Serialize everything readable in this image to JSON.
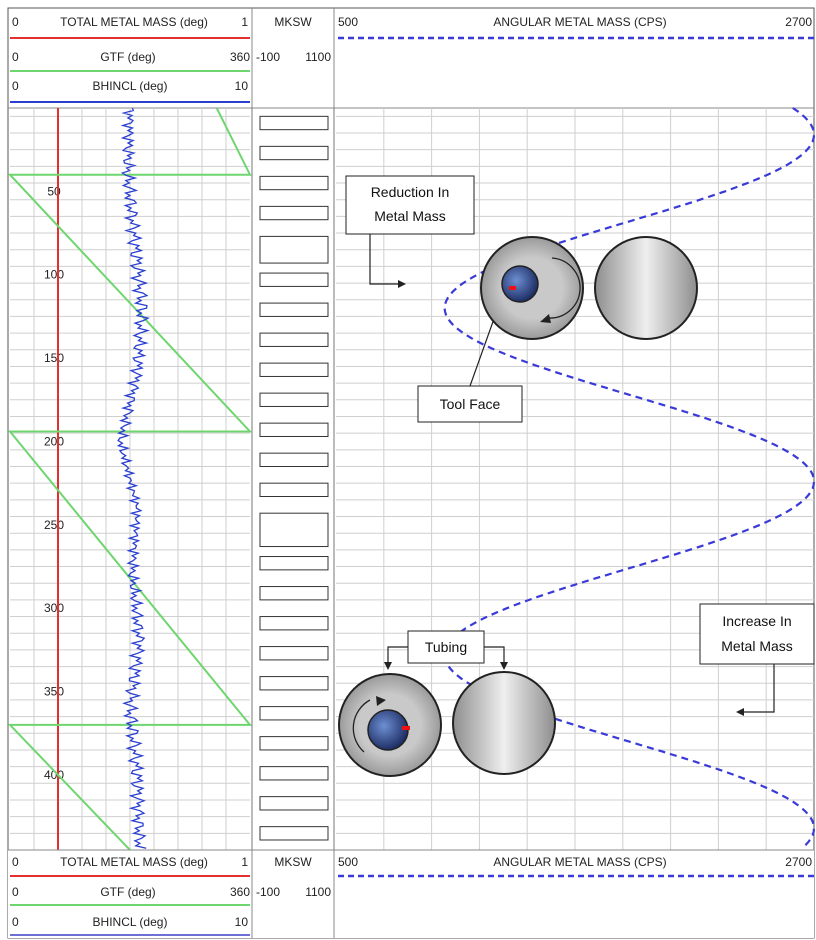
{
  "header_top": {
    "track1": {
      "row1": {
        "min": "0",
        "label": "TOTAL METAL MASS (deg)",
        "max": "1"
      },
      "row2": {
        "min": "0",
        "label": "GTF (deg)",
        "max": "360"
      },
      "row3": {
        "min": "0",
        "label": "BHINCL (deg)",
        "max": "10"
      }
    },
    "track2": {
      "label": "MKSW",
      "min": "-100",
      "max": "1100"
    },
    "track3": {
      "min": "500",
      "label": "ANGULAR METAL MASS (CPS)",
      "max": "2700"
    }
  },
  "header_bottom": {
    "track1": {
      "row1": {
        "min": "0",
        "label": "TOTAL METAL MASS (deg)",
        "max": "1"
      },
      "row2": {
        "min": "0",
        "label": "GTF (deg)",
        "max": "360"
      },
      "row3": {
        "min": "0",
        "label": "BHINCL (deg)",
        "max": "10"
      }
    },
    "track2": {
      "label": "MKSW",
      "min": "-100",
      "max": "1100"
    },
    "track3": {
      "min": "500",
      "label": "ANGULAR METAL MASS (CPS)",
      "max": "2700"
    }
  },
  "annotations": {
    "reduction_line1": "Reduction In",
    "reduction_line2": "Metal Mass",
    "tool_face": "Tool Face",
    "tubing": "Tubing",
    "increase_line1": "Increase In",
    "increase_line2": "Metal Mass"
  },
  "colors": {
    "total_metal_mass": "#e23030",
    "gtf": "#6fd66f",
    "bhincl": "#2a3fd0",
    "angular_metal_mass": "#3a3ad8",
    "grid": "#cfcfcf"
  },
  "chart_data": {
    "type": "line",
    "depth_ticks": [
      "50",
      "100",
      "150",
      "200",
      "250",
      "300",
      "350",
      "400"
    ],
    "depth_range": [
      0,
      445
    ],
    "series": [
      {
        "name": "TOTAL METAL MASS (deg)",
        "scale": [
          0,
          1
        ],
        "x": [
          0.2,
          0.2
        ],
        "depth": [
          0,
          445
        ]
      },
      {
        "name": "GTF (deg)",
        "scale": [
          0,
          360
        ],
        "x": [
          310,
          360,
          0,
          360,
          0,
          360,
          0,
          180
        ],
        "depth": [
          0,
          40,
          40,
          194,
          194,
          370,
          370,
          445
        ]
      },
      {
        "name": "BHINCL (deg)",
        "scale": [
          0,
          10
        ],
        "x_approx": [
          5.0,
          4.9,
          5.2,
          5.5,
          5.3,
          4.6,
          5.3,
          5.1,
          5.4,
          5.0,
          5.3,
          5.4
        ],
        "depth": [
          0,
          40,
          80,
          120,
          160,
          200,
          240,
          280,
          320,
          360,
          400,
          445
        ]
      },
      {
        "name": "ANGULAR METAL MASS (CPS)",
        "scale": [
          500,
          2700
        ],
        "x": [
          2700,
          1600,
          1000,
          1600,
          2700,
          1600,
          1000,
          1600,
          2700,
          1600,
          1000
        ],
        "depth": [
          0,
          52,
          104,
          156,
          208,
          260,
          312,
          364,
          364,
          404,
          445
        ]
      }
    ]
  }
}
